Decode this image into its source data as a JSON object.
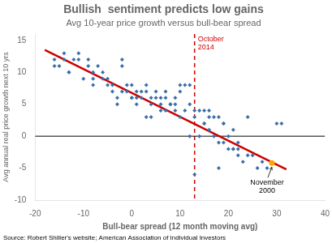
{
  "chart_data": {
    "type": "scatter",
    "title": "Bullish  sentiment predicts low gains",
    "subtitle": "Avg 10-year price growth versus bull-bear spread",
    "xlabel": "Bull-bear spread (12 month moving avg)",
    "ylabel": "Avg annual real price growth next 10 yrs",
    "source": "Source: Robert Shiller's website; American Association of Individual Investors",
    "xlim": [
      -20,
      40
    ],
    "ylim": [
      -10,
      16
    ],
    "xticks": [
      -20,
      -10,
      0,
      10,
      20,
      30,
      40
    ],
    "yticks": [
      -10,
      -5,
      0,
      5,
      10,
      15
    ],
    "grid": false,
    "series": [
      {
        "type": "scatter",
        "color": "#3B6FA8",
        "marker": "diamond",
        "x": [
          -16,
          -15,
          -14,
          -13,
          -12,
          -11,
          -10,
          -9,
          -8,
          -8,
          -7,
          -6,
          -5,
          -4,
          -4,
          -3,
          -2,
          -2,
          -1,
          -1,
          0,
          0,
          1,
          1,
          2,
          2,
          3,
          3,
          4,
          4,
          5,
          5,
          6,
          6,
          7,
          7,
          8,
          8,
          9,
          9,
          10,
          10,
          11,
          11,
          12,
          12,
          13,
          13,
          14,
          14,
          15,
          15,
          16,
          16,
          17,
          17,
          18,
          18,
          19,
          19,
          20,
          20,
          21,
          21,
          22,
          22,
          23,
          24,
          25,
          26,
          27,
          28,
          30,
          31,
          -16,
          -14,
          -13,
          -11,
          -9,
          -8,
          -6,
          -5,
          -3,
          -2,
          0,
          1,
          3,
          4,
          6,
          7,
          9,
          10,
          12,
          13,
          15,
          16,
          18,
          19,
          21,
          22,
          24
        ],
        "values": [
          12,
          11,
          13,
          10,
          12,
          13,
          9,
          12,
          9,
          10,
          11,
          9,
          9,
          7,
          8,
          6,
          7,
          11,
          7,
          8,
          6,
          8,
          5,
          7,
          6,
          7,
          7,
          8,
          5,
          6,
          6,
          7,
          5,
          6,
          6,
          7,
          5,
          5,
          5,
          6,
          3,
          8,
          4,
          8,
          0,
          5,
          -6,
          4,
          0,
          4,
          2,
          4,
          1,
          4,
          0,
          3,
          -1,
          3,
          -1,
          2,
          -2,
          0,
          -2,
          1,
          -3,
          -1,
          -4,
          -3,
          -3,
          -5,
          -4,
          -5,
          2,
          2,
          11,
          12,
          10,
          12,
          11,
          8,
          10,
          8,
          5,
          12,
          6,
          6,
          3,
          3,
          4,
          4,
          4,
          7,
          8,
          3,
          2,
          3,
          -5,
          2,
          -2,
          -2,
          3
        ]
      },
      {
        "type": "scatter",
        "color": "#FFA500",
        "marker": "circle",
        "x": [
          29
        ],
        "values": [
          -4.2
        ]
      },
      {
        "type": "line",
        "color": "#CC0000",
        "x": [
          -18,
          32
        ],
        "values": [
          13.5,
          -5.2
        ]
      }
    ],
    "annotations": [
      {
        "text": "October\n2014",
        "x": 13,
        "color": "#CC0000",
        "line_style": "dashed"
      },
      {
        "y": 0,
        "color": "#000000"
      },
      {
        "text": "November\n2000",
        "x": 29,
        "y": -4.2,
        "color": "#000000"
      }
    ]
  }
}
